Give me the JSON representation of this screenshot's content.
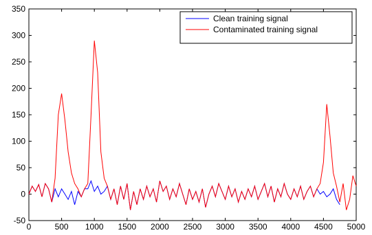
{
  "chart_data": {
    "type": "line",
    "x": [
      0,
      50,
      100,
      150,
      200,
      250,
      300,
      350,
      400,
      450,
      500,
      550,
      600,
      650,
      700,
      750,
      800,
      850,
      900,
      950,
      1000,
      1050,
      1100,
      1150,
      1200,
      1250,
      1300,
      1350,
      1400,
      1450,
      1500,
      1550,
      1600,
      1650,
      1700,
      1750,
      1800,
      1850,
      1900,
      1950,
      2000,
      2050,
      2100,
      2150,
      2200,
      2250,
      2300,
      2350,
      2400,
      2450,
      2500,
      2550,
      2600,
      2650,
      2700,
      2750,
      2800,
      2850,
      2900,
      2950,
      3000,
      3050,
      3100,
      3150,
      3200,
      3250,
      3300,
      3350,
      3400,
      3450,
      3500,
      3550,
      3600,
      3650,
      3700,
      3750,
      3800,
      3850,
      3900,
      3950,
      4000,
      4050,
      4100,
      4150,
      4200,
      4250,
      4300,
      4350,
      4400,
      4450,
      4500,
      4550,
      4600,
      4650,
      4700,
      4750,
      4800,
      4850,
      4900,
      4950,
      5000
    ],
    "series": [
      {
        "name": "Clean training signal",
        "color": "#0000ff",
        "values": [
          0,
          15,
          5,
          18,
          -5,
          20,
          10,
          -15,
          10,
          -5,
          10,
          0,
          -10,
          5,
          -20,
          5,
          -5,
          10,
          10,
          25,
          5,
          15,
          0,
          5,
          15,
          -10,
          10,
          -20,
          15,
          -10,
          20,
          -30,
          5,
          -20,
          10,
          -10,
          15,
          -5,
          10,
          -15,
          25,
          5,
          15,
          -10,
          10,
          -5,
          20,
          0,
          -20,
          10,
          -10,
          5,
          -15,
          10,
          -25,
          0,
          15,
          -5,
          20,
          5,
          -10,
          15,
          -5,
          10,
          -15,
          5,
          -10,
          10,
          -5,
          15,
          -10,
          5,
          20,
          -5,
          15,
          -15,
          10,
          -5,
          20,
          0,
          -10,
          10,
          -5,
          15,
          -10,
          5,
          15,
          -5,
          10,
          0,
          5,
          -5,
          0,
          10,
          -10,
          -20,
          null,
          null,
          null,
          null,
          null
        ]
      },
      {
        "name": "Contaminated training signal",
        "color": "#ff0000",
        "values": [
          0,
          15,
          5,
          18,
          -5,
          20,
          10,
          -15,
          30,
          150,
          190,
          140,
          80,
          40,
          20,
          10,
          -5,
          10,
          20,
          150,
          290,
          230,
          80,
          30,
          15,
          -10,
          10,
          -20,
          15,
          -10,
          20,
          -30,
          5,
          -20,
          10,
          -10,
          15,
          -5,
          10,
          -15,
          25,
          5,
          15,
          -10,
          10,
          -5,
          20,
          0,
          -20,
          10,
          -10,
          5,
          -15,
          10,
          -25,
          0,
          15,
          -5,
          20,
          5,
          -10,
          15,
          -5,
          10,
          -15,
          5,
          -10,
          10,
          -5,
          15,
          -10,
          5,
          20,
          -5,
          15,
          -15,
          10,
          -5,
          20,
          0,
          -10,
          10,
          -5,
          15,
          -10,
          5,
          15,
          -5,
          10,
          20,
          60,
          170,
          110,
          40,
          15,
          -15,
          20,
          -30,
          -10,
          35,
          15
        ]
      }
    ],
    "xlim": [
      0,
      5000
    ],
    "xticks": [
      0,
      500,
      1000,
      1500,
      2000,
      2500,
      3000,
      3500,
      4000,
      4500,
      5000
    ],
    "ylim": [
      -50,
      350
    ],
    "yticks": [
      -50,
      0,
      50,
      100,
      150,
      200,
      250,
      300,
      350
    ],
    "legend": "upper right"
  }
}
